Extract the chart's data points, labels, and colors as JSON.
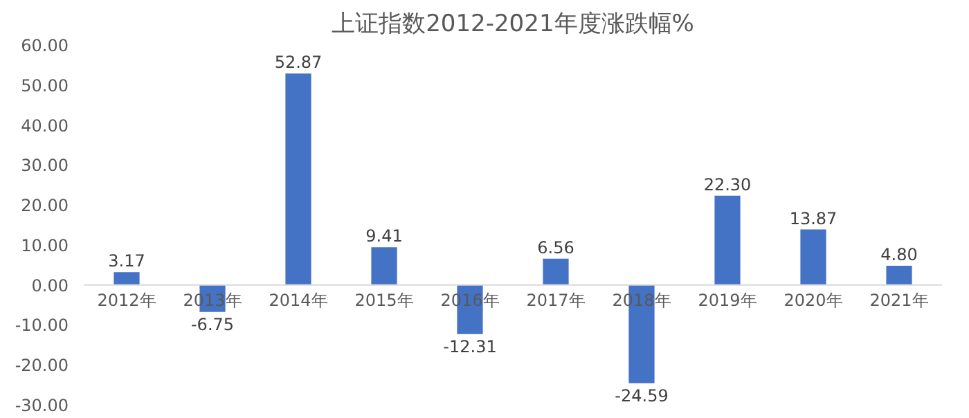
{
  "chart_data": {
    "type": "bar",
    "title": "上证指数2012-2021年度涨跌幅%",
    "categories": [
      "2012年",
      "2013年",
      "2014年",
      "2015年",
      "2016年",
      "2017年",
      "2018年",
      "2019年",
      "2020年",
      "2021年"
    ],
    "values": [
      3.17,
      -6.75,
      52.87,
      9.41,
      -12.31,
      6.56,
      -24.59,
      22.3,
      13.87,
      4.8
    ],
    "value_labels": [
      "3.17",
      "-6.75",
      "52.87",
      "9.41",
      "-12.31",
      "6.56",
      "-24.59",
      "22.30",
      "13.87",
      "4.80"
    ],
    "color": "#4472c4",
    "ylim": [
      -30,
      60
    ],
    "yticks": [
      {
        "value": -30,
        "label": "-30.00"
      },
      {
        "value": -20,
        "label": "-20.00"
      },
      {
        "value": -10,
        "label": "-10.00"
      },
      {
        "value": 0,
        "label": "0.00"
      },
      {
        "value": 10,
        "label": "10.00"
      },
      {
        "value": 20,
        "label": "20.00"
      },
      {
        "value": 30,
        "label": "30.00"
      },
      {
        "value": 40,
        "label": "40.00"
      },
      {
        "value": 50,
        "label": "50.00"
      },
      {
        "value": 60,
        "label": "60.00"
      }
    ],
    "grid": false
  }
}
